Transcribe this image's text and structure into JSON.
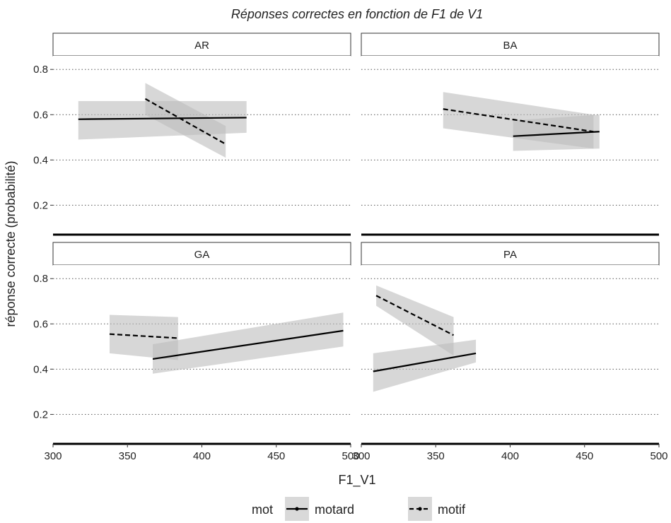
{
  "chart_data": {
    "type": "line",
    "title": "Réponses correctes en fonction de F1 de V1",
    "xlabel": "F1_V1",
    "ylabel": "réponse correcte (probabilité)",
    "xlim": [
      300,
      500
    ],
    "ylim": [
      0.07,
      0.86
    ],
    "x_ticks": [
      300,
      350,
      400,
      450,
      500
    ],
    "y_ticks": [
      0.2,
      0.4,
      0.6,
      0.8
    ],
    "x_tick_labels": [
      "300",
      "350",
      "400",
      "450",
      "500"
    ],
    "y_tick_labels": [
      "0.2",
      "0.4",
      "0.6",
      "0.8"
    ],
    "grid": "horizontal dotted",
    "legend": {
      "title": "mot",
      "placement": "bottom",
      "entries": [
        {
          "name": "motard",
          "linestyle": "solid"
        },
        {
          "name": "motif",
          "linestyle": "dashed"
        }
      ]
    },
    "colors": {
      "line": "#000000",
      "ribbon": "#bdbdbd",
      "grid": "#555555"
    },
    "panels": [
      {
        "label": "AR",
        "series": [
          {
            "name": "motard",
            "x": [
              317,
              430
            ],
            "y": [
              0.58,
              0.587
            ],
            "lower": [
              0.49,
              0.52
            ],
            "upper": [
              0.66,
              0.66
            ]
          },
          {
            "name": "motif",
            "x": [
              362,
              416
            ],
            "y": [
              0.67,
              0.47
            ],
            "lower": [
              0.6,
              0.41
            ],
            "upper": [
              0.74,
              0.55
            ]
          }
        ]
      },
      {
        "label": "BA",
        "series": [
          {
            "name": "motard",
            "x": [
              402,
              460
            ],
            "y": [
              0.505,
              0.525
            ],
            "lower": [
              0.44,
              0.45
            ],
            "upper": [
              0.575,
              0.6
            ]
          },
          {
            "name": "motif",
            "x": [
              355,
              456
            ],
            "y": [
              0.625,
              0.525
            ],
            "lower": [
              0.54,
              0.45
            ],
            "upper": [
              0.7,
              0.6
            ]
          }
        ]
      },
      {
        "label": "GA",
        "series": [
          {
            "name": "motard",
            "x": [
              367,
              495
            ],
            "y": [
              0.445,
              0.57
            ],
            "lower": [
              0.38,
              0.5
            ],
            "upper": [
              0.51,
              0.65
            ]
          },
          {
            "name": "motif",
            "x": [
              338,
              384
            ],
            "y": [
              0.555,
              0.537
            ],
            "lower": [
              0.47,
              0.44
            ],
            "upper": [
              0.64,
              0.63
            ]
          }
        ]
      },
      {
        "label": "PA",
        "series": [
          {
            "name": "motard",
            "x": [
              308,
              377
            ],
            "y": [
              0.39,
              0.47
            ],
            "lower": [
              0.3,
              0.43
            ],
            "upper": [
              0.47,
              0.53
            ]
          },
          {
            "name": "motif",
            "x": [
              310,
              362
            ],
            "y": [
              0.725,
              0.55
            ],
            "lower": [
              0.68,
              0.46
            ],
            "upper": [
              0.77,
              0.63
            ]
          }
        ]
      }
    ]
  }
}
